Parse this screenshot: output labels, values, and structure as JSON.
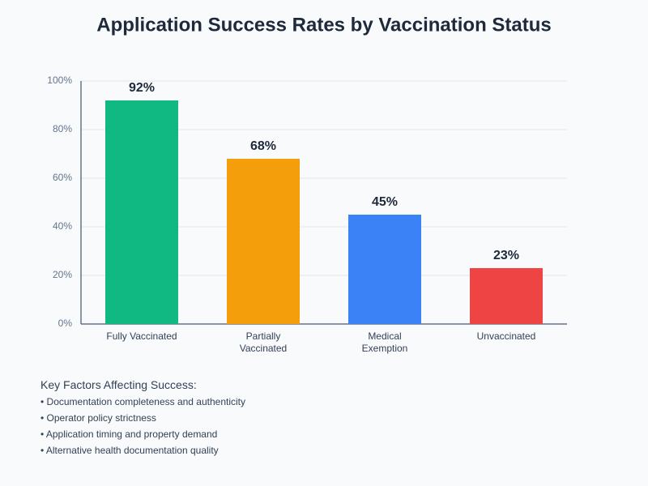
{
  "chart_data": {
    "type": "bar",
    "title": "Application Success Rates by Vaccination Status",
    "categories": [
      "Fully Vaccinated",
      "Partially Vaccinated",
      "Medical Exemption",
      "Unvaccinated"
    ],
    "values": [
      92,
      68,
      45,
      23
    ],
    "value_labels": [
      "92%",
      "68%",
      "45%",
      "23%"
    ],
    "colors": [
      "#10b981",
      "#f59e0b",
      "#3b82f6",
      "#ef4444"
    ],
    "ylim": [
      0,
      100
    ],
    "yticks": [
      {
        "value": 0,
        "label": "0%"
      },
      {
        "value": 20,
        "label": "20%"
      },
      {
        "value": 40,
        "label": "40%"
      },
      {
        "value": 60,
        "label": "60%"
      },
      {
        "value": 80,
        "label": "80%"
      },
      {
        "value": 100,
        "label": "100%"
      }
    ],
    "grid": true
  },
  "notes": {
    "heading": "Key Factors Affecting Success:",
    "items": [
      "• Documentation completeness and authenticity",
      "• Operator policy strictness",
      "• Application timing and property demand",
      "• Alternative health documentation quality"
    ]
  }
}
